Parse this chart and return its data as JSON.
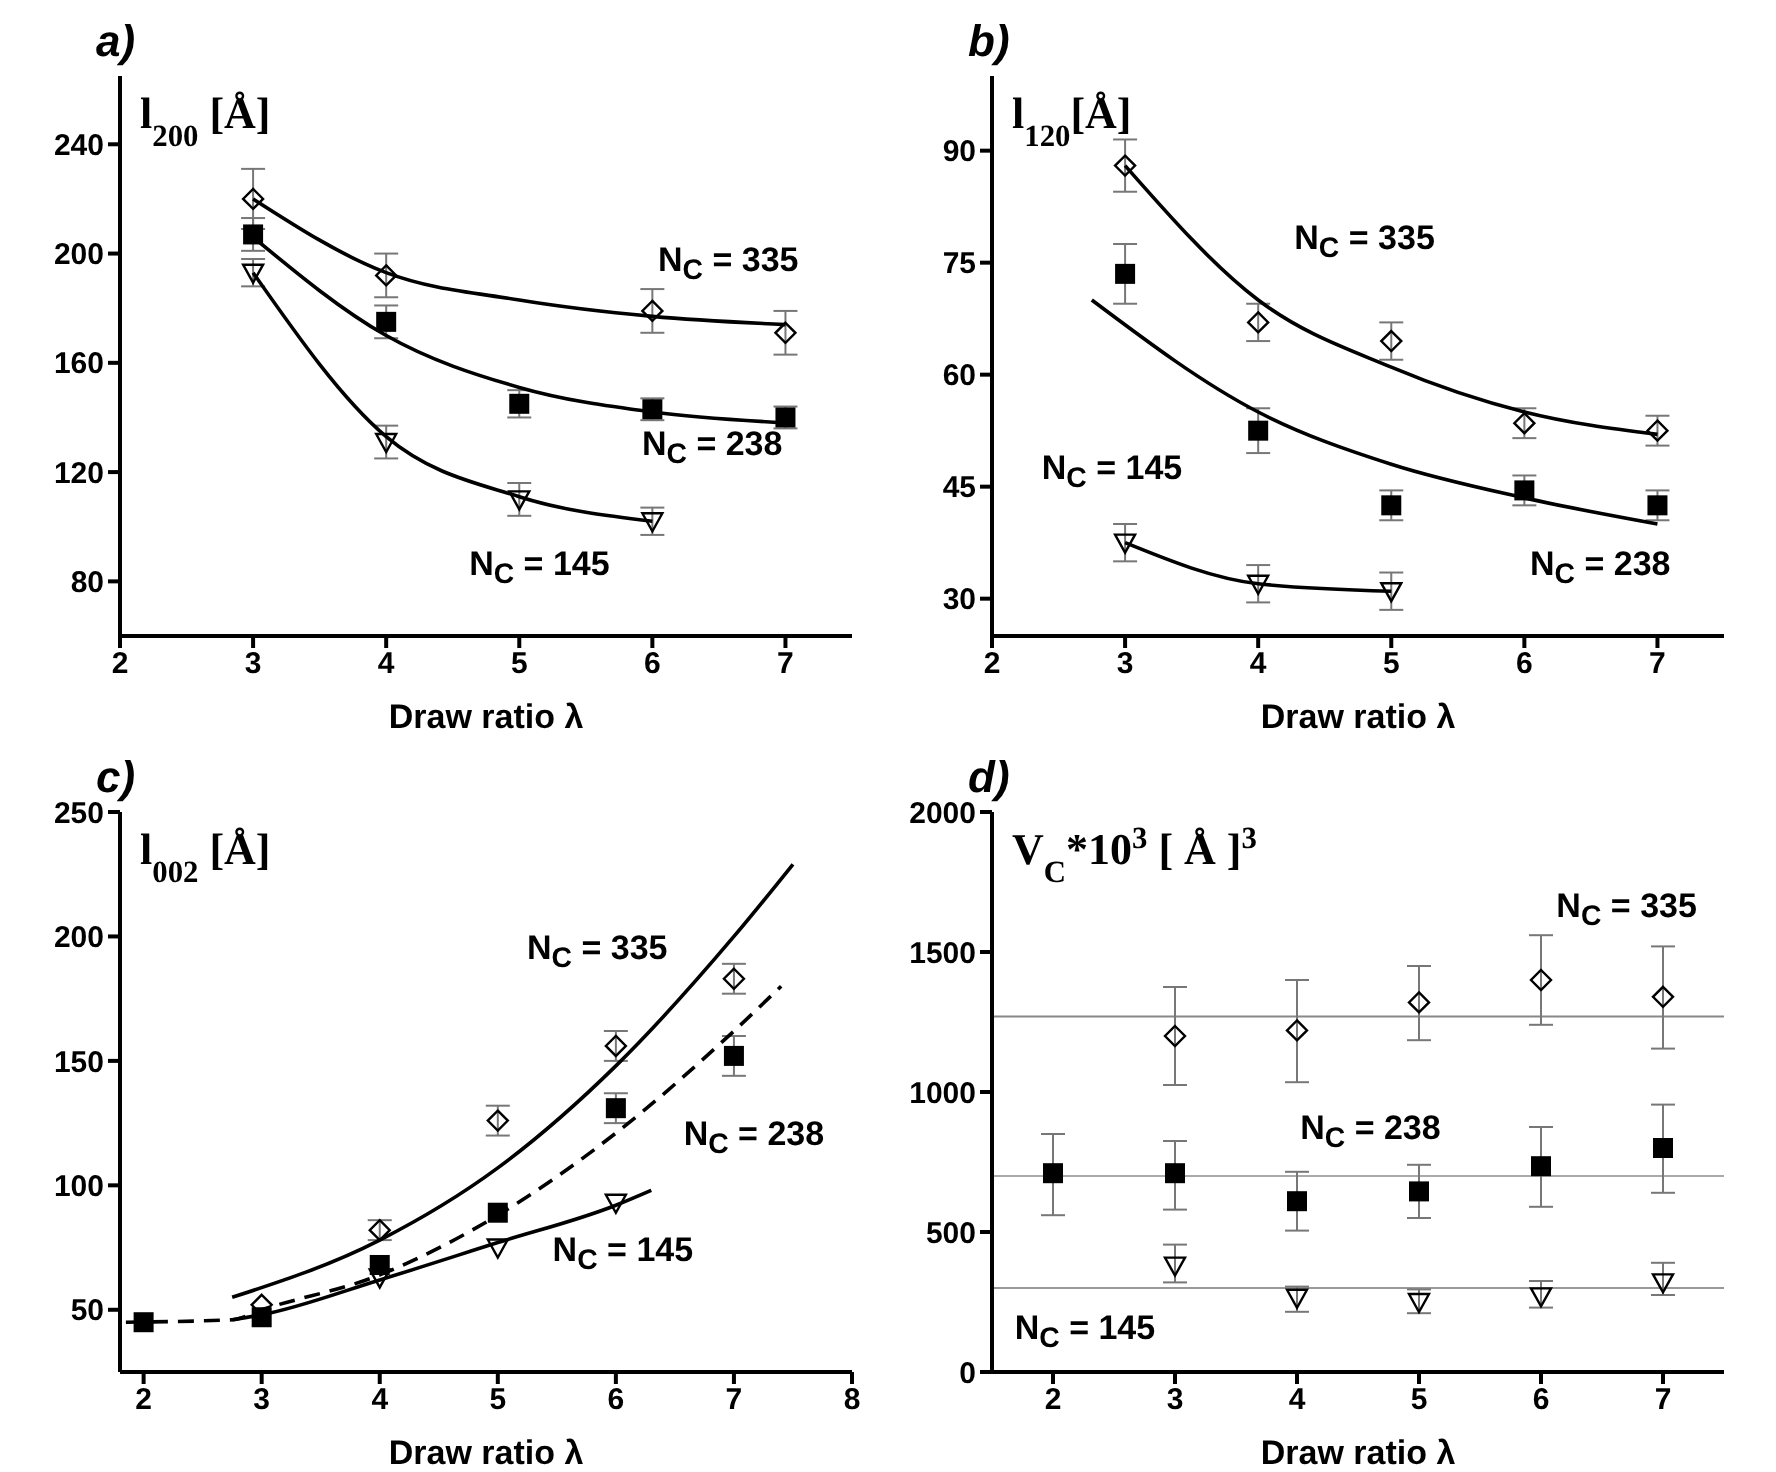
{
  "chart_data": [
    {
      "type": "scatter",
      "title": "a)",
      "ylabel": "l$_{200}$ [Å]",
      "xlabel": "Draw ratio λ",
      "xlim": [
        2,
        7.5
      ],
      "xticks": [
        2,
        3,
        4,
        5,
        6,
        7
      ],
      "ylim": [
        60,
        265
      ],
      "yticks": [
        80,
        120,
        160,
        200,
        240
      ],
      "series": [
        {
          "type": "scatter",
          "color": "#000000",
          "marker": "diamond",
          "x": [
            3,
            4,
            6,
            7
          ],
          "values": [
            220,
            192,
            179,
            171
          ],
          "errors": [
            11,
            8,
            8,
            8
          ]
        },
        {
          "type": "scatter",
          "color": "#000000",
          "marker": "square",
          "x": [
            3,
            4,
            5,
            6,
            7
          ],
          "values": [
            207,
            175,
            145,
            143,
            140
          ],
          "errors": [
            6,
            6,
            5,
            4,
            4
          ]
        },
        {
          "type": "scatter",
          "color": "#000000",
          "marker": "triangle",
          "x": [
            3,
            4,
            5,
            6
          ],
          "values": [
            193,
            131,
            110,
            102
          ],
          "errors": [
            5,
            6,
            6,
            5
          ]
        },
        {
          "type": "line",
          "color": "#000000",
          "marker": "none",
          "line_style": "solid",
          "x": [
            3,
            4,
            5,
            6,
            7
          ],
          "values": [
            220,
            193,
            183,
            177,
            174
          ]
        },
        {
          "type": "line",
          "color": "#000000",
          "marker": "none",
          "line_style": "solid",
          "x": [
            3,
            4,
            5,
            6,
            7
          ],
          "values": [
            206,
            170,
            151,
            142,
            138
          ]
        },
        {
          "type": "line",
          "color": "#000000",
          "marker": "none",
          "line_style": "solid",
          "x": [
            3,
            4,
            5,
            6
          ],
          "values": [
            193,
            133,
            111,
            102
          ]
        }
      ],
      "annotations": [
        "N$_{C}$ = 335",
        "N$_{C}$ = 238",
        "N$_{C}$ = 145"
      ]
    },
    {
      "type": "scatter",
      "title": "b)",
      "ylabel": "l$_{120}$[Å]",
      "xlabel": "Draw ratio λ",
      "xlim": [
        2,
        7.5
      ],
      "xticks": [
        2,
        3,
        4,
        5,
        6,
        7
      ],
      "ylim": [
        25,
        100
      ],
      "yticks": [
        30,
        45,
        60,
        75,
        90
      ],
      "series": [
        {
          "type": "scatter",
          "color": "#000000",
          "marker": "diamond",
          "x": [
            3,
            4,
            5,
            6,
            7
          ],
          "values": [
            88,
            67,
            64.5,
            53.5,
            52.5
          ],
          "errors": [
            3.5,
            2.5,
            2.5,
            2,
            2
          ]
        },
        {
          "type": "scatter",
          "color": "#000000",
          "marker": "square",
          "x": [
            3,
            4,
            5,
            6,
            7
          ],
          "values": [
            73.5,
            52.5,
            42.5,
            44.5,
            42.5
          ],
          "errors": [
            4,
            3,
            2,
            2,
            2
          ]
        },
        {
          "type": "scatter",
          "color": "#000000",
          "marker": "triangle",
          "x": [
            3,
            4,
            5
          ],
          "values": [
            37.5,
            32,
            31
          ],
          "errors": [
            2.5,
            2.5,
            2.5
          ]
        },
        {
          "type": "line",
          "color": "#000000",
          "marker": "none",
          "line_style": "solid",
          "x": [
            3,
            4,
            5,
            6,
            7
          ],
          "values": [
            88,
            70,
            61,
            55,
            52
          ]
        },
        {
          "type": "line",
          "color": "#000000",
          "marker": "none",
          "line_style": "solid",
          "x": [
            2.75,
            4,
            5,
            6,
            7
          ],
          "values": [
            70,
            55,
            48,
            43.5,
            40
          ]
        },
        {
          "type": "line",
          "color": "#000000",
          "marker": "none",
          "line_style": "solid",
          "x": [
            3,
            4,
            5
          ],
          "values": [
            37.5,
            32,
            31
          ]
        }
      ],
      "annotations": [
        "N$_{C}$ = 335",
        "N$_{C}$ = 238",
        "N$_{C}$ = 145"
      ]
    },
    {
      "type": "scatter",
      "title": "c)",
      "ylabel": "l$_{002}$ [Å]",
      "xlabel": "Draw ratio λ",
      "xlim": [
        1.8,
        8
      ],
      "xticks": [
        2,
        3,
        4,
        5,
        6,
        7,
        8
      ],
      "ylim": [
        25,
        250
      ],
      "yticks": [
        50,
        100,
        150,
        200,
        250
      ],
      "series": [
        {
          "type": "scatter",
          "color": "#000000",
          "marker": "diamond",
          "x": [
            3,
            4,
            5,
            6,
            7
          ],
          "values": [
            52,
            82,
            126,
            156,
            183
          ],
          "errors": [
            null,
            4,
            6,
            6,
            6
          ]
        },
        {
          "type": "scatter",
          "color": "#000000",
          "marker": "square",
          "x": [
            2,
            3,
            4,
            5,
            6,
            7
          ],
          "values": [
            45,
            47,
            68,
            89,
            131,
            152
          ],
          "errors": [
            null,
            null,
            null,
            null,
            6,
            8
          ]
        },
        {
          "type": "scatter",
          "color": "#000000",
          "marker": "triangle",
          "x": [
            4,
            5,
            6
          ],
          "values": [
            63,
            75,
            93
          ],
          "errors": [
            null,
            null,
            null
          ]
        },
        {
          "type": "line",
          "color": "#000000",
          "marker": "none",
          "line_style": "solid",
          "x": [
            2.75,
            4,
            5,
            6,
            7,
            7.5
          ],
          "values": [
            55,
            78,
            107,
            148,
            200,
            229
          ]
        },
        {
          "type": "line",
          "color": "#000000",
          "marker": "none",
          "line_style": "dashed",
          "x": [
            1.85,
            2.75,
            3,
            4,
            5,
            6,
            7,
            7.4
          ],
          "values": [
            45,
            46,
            50,
            64,
            88,
            121,
            162,
            180
          ]
        },
        {
          "type": "line",
          "color": "#000000",
          "marker": "none",
          "line_style": "solid",
          "x": [
            2.75,
            3,
            4,
            5,
            6,
            6.3
          ],
          "values": [
            46,
            48,
            62,
            77,
            92,
            98
          ]
        }
      ],
      "annotations": [
        "N$_{C}$ = 335",
        "N$_{C}$ = 238",
        "N$_{C}$ = 145"
      ]
    },
    {
      "type": "scatter",
      "title": "d)",
      "ylabel": "V$_{C}$*10$^{3}$ [ Å ]$^{3}$",
      "xlabel": "Draw ratio λ",
      "xlim": [
        1.5,
        7.5
      ],
      "xticks": [
        2,
        3,
        4,
        5,
        6,
        7
      ],
      "ylim": [
        0,
        2000
      ],
      "yticks": [
        0,
        500,
        1000,
        1500,
        2000
      ],
      "series": [
        {
          "type": "scatter",
          "color": "#000000",
          "marker": "diamond",
          "x": [
            3,
            4,
            5,
            6,
            7
          ],
          "values": [
            1200,
            1220,
            1320,
            1400,
            1340
          ],
          "errors": [
            [
              1025,
              1375
            ],
            [
              1035,
              1400
            ],
            [
              1185,
              1450
            ],
            [
              1240,
              1560
            ],
            [
              1155,
              1520
            ]
          ]
        },
        {
          "type": "scatter",
          "color": "#000000",
          "marker": "square",
          "x": [
            2,
            3,
            4,
            5,
            6,
            7
          ],
          "values": [
            710,
            710,
            610,
            645,
            735,
            800
          ],
          "errors": [
            [
              560,
              850
            ],
            [
              580,
              825
            ],
            [
              505,
              715
            ],
            [
              550,
              740
            ],
            [
              590,
              875
            ],
            [
              640,
              955
            ]
          ]
        },
        {
          "type": "scatter",
          "color": "#000000",
          "marker": "triangle",
          "x": [
            3,
            4,
            5,
            6,
            7
          ],
          "values": [
            380,
            265,
            250,
            270,
            320
          ],
          "errors": [
            [
              320,
              455
            ],
            [
              215,
              305
            ],
            [
              210,
              295
            ],
            [
              230,
              325
            ],
            [
              275,
              390
            ]
          ]
        }
      ],
      "ref_lines": [
        {
          "axis": "y",
          "value": 1270,
          "color": "#888888"
        },
        {
          "axis": "y",
          "value": 700,
          "color": "#aaaaaa"
        },
        {
          "axis": "y",
          "value": 300,
          "color": "#999999"
        }
      ],
      "annotations": [
        "N$_{C}$ = 335",
        "N$_{C}$ = 238",
        "N$_{C}$ = 145"
      ]
    }
  ]
}
